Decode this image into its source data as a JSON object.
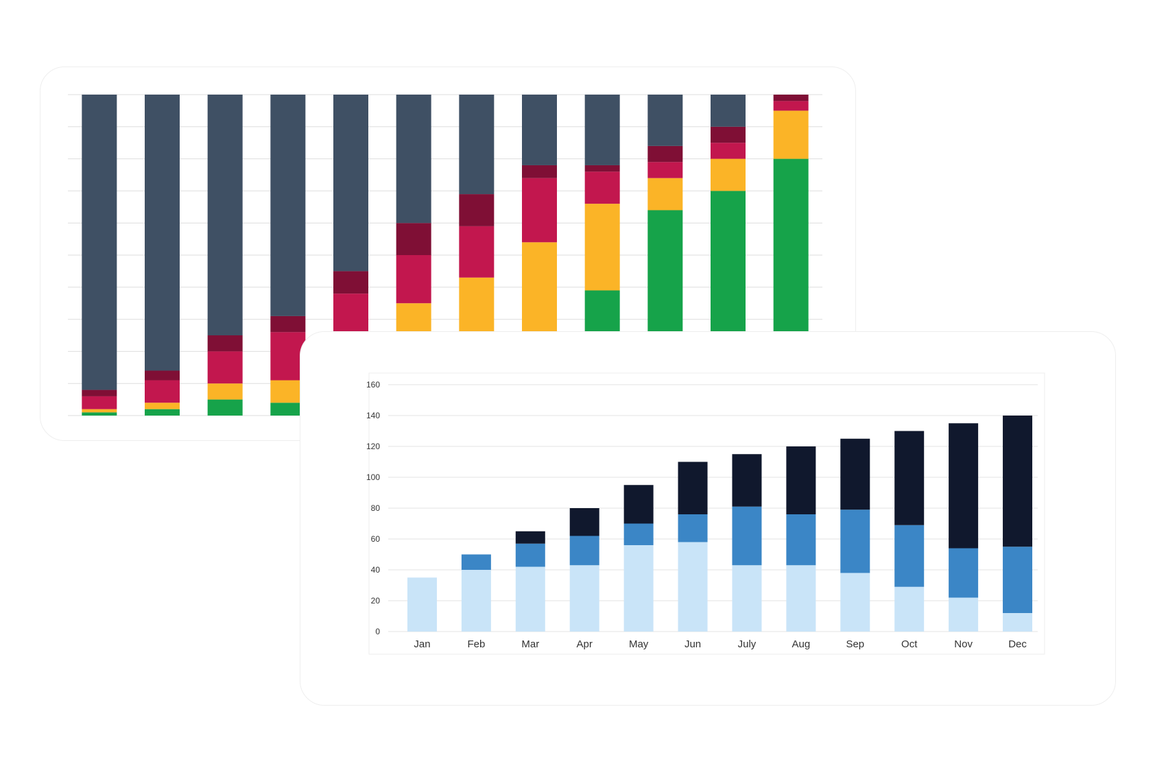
{
  "chart_data": [
    {
      "type": "bar",
      "stacked": true,
      "normalized": true,
      "grid": true,
      "ylim": [
        0,
        100
      ],
      "series": [
        {
          "color": "#16a34a",
          "values": [
            1,
            2,
            5,
            4,
            9,
            15,
            22,
            25,
            39,
            64,
            70,
            80
          ]
        },
        {
          "color": "#fbb427",
          "values": [
            1,
            2,
            5,
            7,
            15,
            20,
            21,
            29,
            27,
            10,
            10,
            15
          ]
        },
        {
          "color": "#c2174e",
          "values": [
            4,
            7,
            10,
            15,
            14,
            15,
            16,
            20,
            10,
            5,
            5,
            3
          ]
        },
        {
          "color": "#7f0f35",
          "values": [
            2,
            3,
            5,
            5,
            7,
            10,
            10,
            4,
            2,
            5,
            5,
            2
          ]
        },
        {
          "color": "#3f5064",
          "values": [
            92,
            86,
            75,
            69,
            55,
            40,
            31,
            22,
            22,
            16,
            10,
            0
          ]
        }
      ]
    },
    {
      "type": "bar",
      "stacked": true,
      "categories": [
        "Jan",
        "Feb",
        "Mar",
        "Apr",
        "May",
        "Jun",
        "July",
        "Aug",
        "Sep",
        "Oct",
        "Nov",
        "Dec"
      ],
      "yticks": [
        "0",
        "20",
        "40",
        "60",
        "80",
        "100",
        "120",
        "140",
        "160"
      ],
      "ylim": [
        0,
        160
      ],
      "grid": true,
      "series": [
        {
          "color": "#c9e4f8",
          "values": [
            35,
            40,
            42,
            43,
            56,
            58,
            43,
            43,
            38,
            29,
            22,
            12
          ]
        },
        {
          "color": "#3b86c6",
          "values": [
            0,
            10,
            15,
            19,
            14,
            18,
            38,
            33,
            41,
            40,
            32,
            43
          ]
        },
        {
          "color": "#10182d",
          "values": [
            0,
            0,
            8,
            18,
            25,
            34,
            34,
            44,
            46,
            61,
            81,
            85
          ]
        }
      ]
    }
  ]
}
